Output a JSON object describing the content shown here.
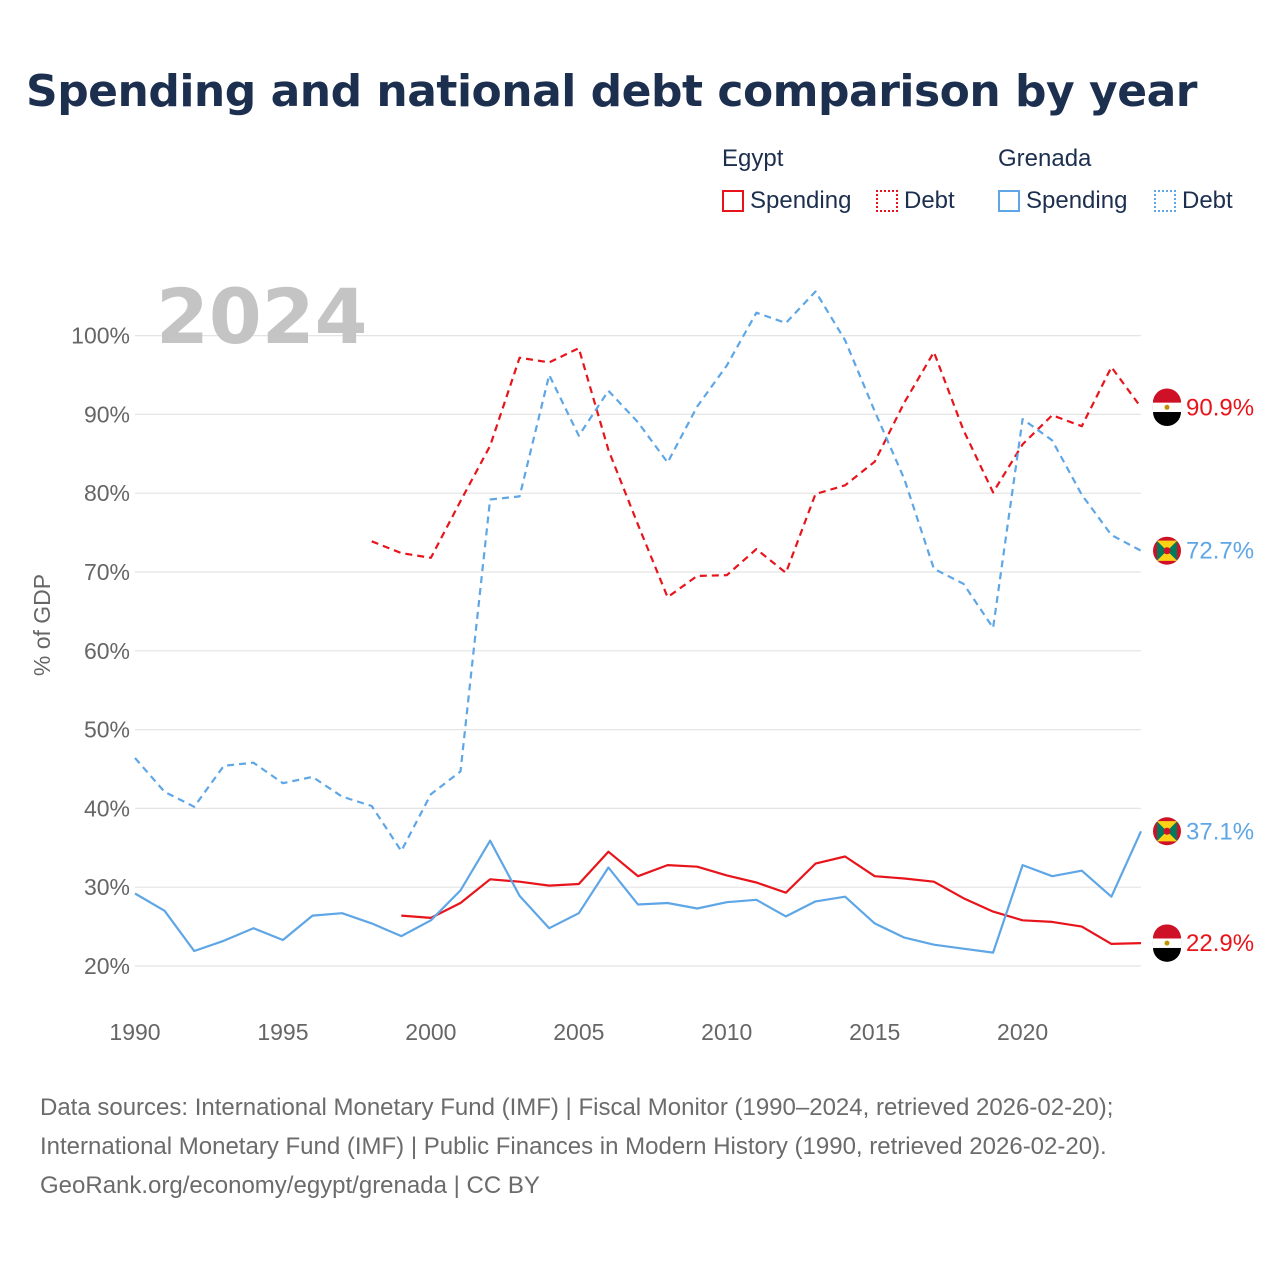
{
  "title": "Spending and national debt comparison by year",
  "legend": {
    "groups": [
      {
        "name": "Egypt",
        "spending_label": "Spending",
        "debt_label": "Debt"
      },
      {
        "name": "Grenada",
        "spending_label": "Spending",
        "debt_label": "Debt"
      }
    ]
  },
  "colors": {
    "egypt": "#e8141b",
    "grenada": "#5ea6e6",
    "grid": "#e4e4e4",
    "axis_text": "#666666",
    "year_label": "#c4c4c4"
  },
  "sources": {
    "line1": "Data sources: International Monetary Fund (IMF) | Fiscal Monitor (1990–2024, retrieved 2026-02-20);",
    "line2": "International Monetary Fund (IMF) | Public Finances in Modern History (1990, retrieved 2026-02-20).",
    "line3": "GeoRank.org/economy/egypt/grenada | CC BY"
  },
  "chart_data": {
    "type": "line",
    "current_year_label": "2024",
    "ylabel": "% of GDP",
    "xlim": [
      1990,
      2024
    ],
    "ylim": [
      15,
      106
    ],
    "x_ticks": [
      1990,
      1995,
      2000,
      2005,
      2010,
      2015,
      2020
    ],
    "x_tick_labels": [
      "1990",
      "1995",
      "2000",
      "2005",
      "2010",
      "2015",
      "2020"
    ],
    "y_ticks": [
      20,
      30,
      40,
      50,
      60,
      70,
      80,
      90,
      100
    ],
    "y_tick_labels": [
      "20%",
      "30%",
      "40%",
      "50%",
      "60%",
      "70%",
      "80%",
      "90%",
      "100%"
    ],
    "series": [
      {
        "name": "Egypt Spending",
        "country": "Egypt",
        "metric": "Spending",
        "style": "solid",
        "color": "#e8141b",
        "x": [
          1999,
          2000,
          2001,
          2002,
          2003,
          2004,
          2005,
          2006,
          2007,
          2008,
          2009,
          2010,
          2011,
          2012,
          2013,
          2014,
          2015,
          2016,
          2017,
          2018,
          2019,
          2020,
          2021,
          2022,
          2023,
          2024
        ],
        "values": [
          26.4,
          26.1,
          28.0,
          31.0,
          30.7,
          30.2,
          30.4,
          34.5,
          31.4,
          32.8,
          32.6,
          31.5,
          30.6,
          29.3,
          33.0,
          33.9,
          31.4,
          31.1,
          30.7,
          28.6,
          26.9,
          25.8,
          25.6,
          25.0,
          22.8,
          22.9
        ],
        "end_label": "22.9%"
      },
      {
        "name": "Egypt Debt",
        "country": "Egypt",
        "metric": "Debt",
        "style": "dashed",
        "color": "#e8141b",
        "x": [
          1998,
          1999,
          2000,
          2001,
          2002,
          2003,
          2004,
          2005,
          2006,
          2007,
          2008,
          2009,
          2010,
          2011,
          2012,
          2013,
          2014,
          2015,
          2016,
          2017,
          2018,
          2019,
          2020,
          2021,
          2022,
          2023,
          2024
        ],
        "values": [
          73.9,
          72.4,
          71.8,
          79.0,
          86.0,
          97.2,
          96.6,
          98.4,
          85.5,
          76.0,
          66.8,
          69.5,
          69.6,
          72.9,
          69.9,
          79.9,
          81.0,
          84.0,
          91.5,
          97.9,
          88.0,
          80.1,
          86.2,
          89.9,
          88.5,
          96.0,
          90.9
        ],
        "end_label": "90.9%"
      },
      {
        "name": "Grenada Spending",
        "country": "Grenada",
        "metric": "Spending",
        "style": "solid",
        "color": "#5ea6e6",
        "x": [
          1990,
          1991,
          1992,
          1993,
          1994,
          1995,
          1996,
          1997,
          1998,
          1999,
          2000,
          2001,
          2002,
          2003,
          2004,
          2005,
          2006,
          2007,
          2008,
          2009,
          2010,
          2011,
          2012,
          2013,
          2014,
          2015,
          2016,
          2017,
          2018,
          2019,
          2020,
          2021,
          2022,
          2023,
          2024
        ],
        "values": [
          29.2,
          27.0,
          21.9,
          23.2,
          24.8,
          23.3,
          26.4,
          26.7,
          25.4,
          23.8,
          25.8,
          29.6,
          35.9,
          28.9,
          24.8,
          26.7,
          32.5,
          27.8,
          28.0,
          27.3,
          28.1,
          28.4,
          26.3,
          28.2,
          28.8,
          25.4,
          23.6,
          22.7,
          22.2,
          21.7,
          32.8,
          31.4,
          32.1,
          28.8,
          37.1
        ],
        "end_label": "37.1%"
      },
      {
        "name": "Grenada Debt",
        "country": "Grenada",
        "metric": "Debt",
        "style": "dashed",
        "color": "#5ea6e6",
        "x": [
          1990,
          1991,
          1992,
          1993,
          1994,
          1995,
          1996,
          1997,
          1998,
          1999,
          2000,
          2001,
          2002,
          2003,
          2004,
          2005,
          2006,
          2007,
          2008,
          2009,
          2010,
          2011,
          2012,
          2013,
          2014,
          2015,
          2016,
          2017,
          2018,
          2019,
          2020,
          2021,
          2022,
          2023,
          2024
        ],
        "values": [
          46.4,
          42.1,
          40.2,
          45.4,
          45.8,
          43.2,
          44.0,
          41.5,
          40.3,
          34.6,
          41.8,
          44.7,
          79.2,
          79.6,
          95.0,
          87.3,
          93.0,
          89.0,
          83.9,
          91.0,
          96.2,
          102.9,
          101.6,
          105.6,
          99.4,
          90.4,
          81.8,
          70.4,
          68.5,
          62.9,
          89.4,
          86.7,
          79.8,
          74.7,
          72.7
        ],
        "end_label": "72.7%"
      }
    ]
  }
}
